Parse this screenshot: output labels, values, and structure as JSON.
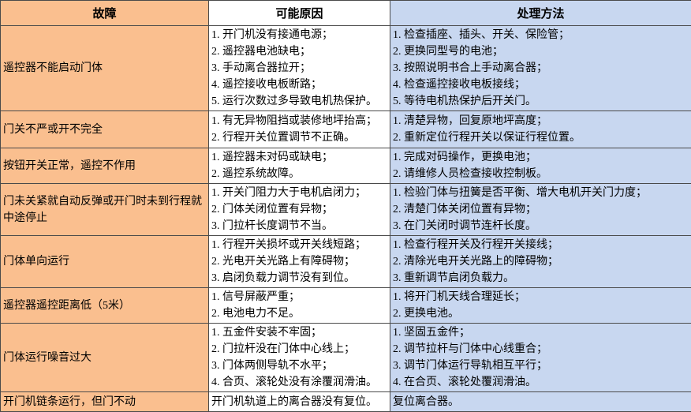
{
  "colors": {
    "fault_bg": "#FABF8F",
    "cause_bg": "#FFFFFF",
    "solution_bg": "#C8D7F0",
    "border": "#4A4A4A",
    "text": "#000000"
  },
  "table": {
    "headers": [
      "故障",
      "可能原因",
      "处理方法"
    ],
    "rows": [
      {
        "fault": "遥控器不能启动门体",
        "causes": [
          "1. 开门机没有接通电源；",
          "2. 遥控器电池缺电；",
          "3. 手动离合器拉开；",
          "4. 遥控接收电板断路；",
          "5. 运行次数过多导致电机热保护。"
        ],
        "solutions": [
          "1. 检查插座、插头、开关、保险管；",
          "2. 更换同型号的电池；",
          "3. 按照说明书合上手动离合器；",
          "4. 检查遥控接收电板接线；",
          "5. 等待电机热保护后开关门。"
        ]
      },
      {
        "fault": "门关不严或开不完全",
        "causes": [
          "1. 有无异物阻挡或装修地坪抬高；",
          "2. 行程开关位置调节不正确。"
        ],
        "solutions": [
          "1. 清楚异物，回复原地坪高度；",
          "2. 重新定位行程开关以保证行程位置。"
        ]
      },
      {
        "fault": "按钮开关正常，遥控不作用",
        "causes": [
          "1. 遥控器未对码或缺电；",
          "2. 遥控系统故障。"
        ],
        "solutions": [
          "1. 完成对码操作，更换电池；",
          "2. 请维修人员检查接收控制板。"
        ]
      },
      {
        "fault": "门未关紧就自动反弹或开门时未到行程就中途停止",
        "causes": [
          "1. 开关门阻力大于电机启闭力；",
          "2. 门体关闭位置有异物；",
          "3. 门拉杆长度调节不当。"
        ],
        "solutions": [
          "1. 检验门体与扭簧是否平衡、增大电机开关门力度；",
          "2. 清楚门体关闭位置有异物；",
          "3. 在门关闭时调节连杆长度。"
        ]
      },
      {
        "fault": "门体单向运行",
        "causes": [
          "1. 行程开关损坏或开关线短路；",
          "2. 光电开关光路上有障碍物；",
          "3. 启闭负载力调节没有到位。"
        ],
        "solutions": [
          "1. 检查行程开关及行程开关接线；",
          "2. 清除光电开关光路上的障碍物；",
          "3. 重新调节启闭负载力。"
        ]
      },
      {
        "fault": "遥控器遥控距离低（5米）",
        "causes": [
          "1. 信号屏蔽严重；",
          "2. 电池电力不足。"
        ],
        "solutions": [
          "1. 将开门机天线合理延长；",
          "2. 更换电池。"
        ]
      },
      {
        "fault": "门体运行噪音过大",
        "causes": [
          "1. 五金件安装不牢固；",
          "2. 门拉杆没在门体中心线上；",
          "3. 门体两侧导轨不水平；",
          "4. 合页、滚轮处没有涂覆润滑油。"
        ],
        "solutions": [
          "1. 坚固五金件；",
          "2. 调节拉杆与门体中心线重合；",
          "3. 调节门体运行导轨相互平行；",
          "4. 在合页、滚轮处覆润滑油。"
        ]
      },
      {
        "fault": "开门机链条运行，但门不动",
        "causes": [
          "开门机轨道上的离合器没有复位。"
        ],
        "solutions": [
          "复位离合器。"
        ]
      }
    ]
  }
}
